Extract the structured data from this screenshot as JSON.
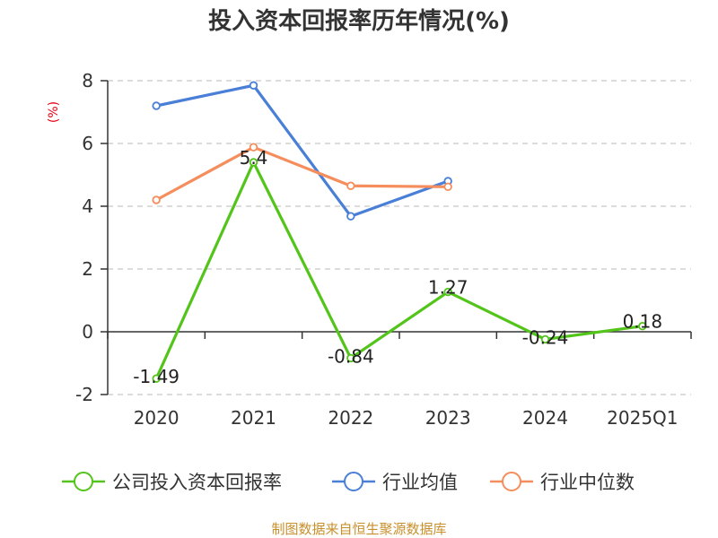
{
  "chart_data": {
    "type": "line",
    "title": "投入资本回报率历年情况(%)",
    "ylabel": "(%)",
    "xlabel": "",
    "categories": [
      "2020",
      "2021",
      "2022",
      "2023",
      "2024",
      "2025Q1"
    ],
    "ylim": [
      -2,
      8
    ],
    "yticks": [
      -2,
      0,
      2,
      4,
      6,
      8
    ],
    "grid": true,
    "legend_position": "bottom",
    "series": [
      {
        "name": "公司投入资本回报率",
        "color": "#52c41a",
        "values": [
          -1.49,
          5.4,
          -0.84,
          1.27,
          -0.24,
          0.18
        ],
        "labels": [
          "-1.49",
          "5.4",
          "-0.84",
          "1.27",
          "-0.24",
          "0.18"
        ]
      },
      {
        "name": "行业均值",
        "color": "#4a7fd8",
        "values": [
          7.2,
          7.85,
          3.68,
          4.8,
          null,
          null
        ]
      },
      {
        "name": "行业中位数",
        "color": "#f58d5c",
        "values": [
          4.2,
          5.88,
          4.65,
          4.62,
          null,
          null
        ]
      }
    ],
    "source": "制图数据来自恒生聚源数据库"
  }
}
